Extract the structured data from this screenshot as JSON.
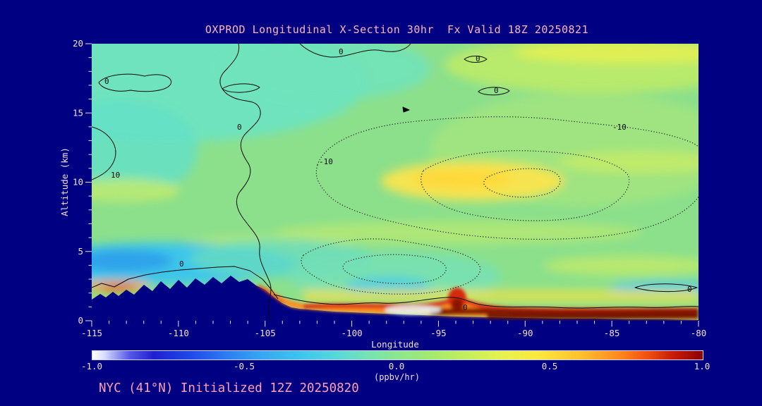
{
  "title": "OXPROD Longitudinal X-Section 30hr  Fx Valid 18Z 20250821",
  "footer": "NYC (41°N) Initialized 12Z 20250820",
  "axes": {
    "y_label": "Altitude (km)",
    "y_ticks": [
      "20",
      "15",
      "10",
      "5",
      "0"
    ],
    "x_label": "Longitude",
    "x_ticks": [
      "-115",
      "-110",
      "-105",
      "-100",
      "-95",
      "-90",
      "-85",
      "-80"
    ]
  },
  "colorbar": {
    "tick_labels": [
      "-1.0",
      "-0.5",
      "0.0",
      "0.5",
      "1.0"
    ],
    "units_label": "(ppbv/hr)",
    "min": -1.0,
    "max": 1.0,
    "gradient_stops": [
      [
        0,
        "#FFFFFF"
      ],
      [
        2,
        "#D8DCFF"
      ],
      [
        6,
        "#5858E8"
      ],
      [
        10,
        "#2020D0"
      ],
      [
        16,
        "#2048E8"
      ],
      [
        22,
        "#2E7CF2"
      ],
      [
        28,
        "#38A8F0"
      ],
      [
        34,
        "#3CC4EE"
      ],
      [
        40,
        "#58D8D8"
      ],
      [
        45,
        "#76E2B4"
      ],
      [
        50,
        "#8CE68C"
      ],
      [
        55,
        "#A2E972"
      ],
      [
        61,
        "#C2EE5E"
      ],
      [
        67,
        "#E6F24E"
      ],
      [
        73,
        "#FFE83E"
      ],
      [
        80,
        "#FFC02E"
      ],
      [
        86,
        "#FF8C1E"
      ],
      [
        91,
        "#F05010"
      ],
      [
        95,
        "#C81E04"
      ],
      [
        100,
        "#8B0000"
      ]
    ]
  },
  "contours": {
    "labels": [
      "0",
      "0",
      "10",
      "0",
      "0",
      "0",
      "-10",
      "-10",
      "0",
      "0",
      "0"
    ],
    "levels_labeled": [
      -10,
      0,
      10
    ],
    "line_style": "solid for levels >= 0, dotted for negative levels"
  },
  "colors": {
    "background": "#000082",
    "terrain": "#000082",
    "title_text": "#FFB4C0",
    "axis_text": "#F2DEDE",
    "footer_text": "#FF9FB3",
    "field_base_green": "#8CE08C"
  },
  "chart_data": {
    "type": "heatmap",
    "title": "OXPROD Longitudinal X-Section 30hr  Fx Valid 18Z 20250821",
    "xlabel": "Longitude",
    "ylabel": "Altitude (km)",
    "units": "ppbv/hr",
    "x_range": [
      -115,
      -80
    ],
    "y_range": [
      0,
      20
    ],
    "colorbar_range": [
      -1.0,
      1.0
    ],
    "x": [
      -115,
      -110,
      -105,
      -100,
      -95,
      -90,
      -85,
      -80
    ],
    "y": [
      0,
      2.5,
      5,
      7.5,
      10,
      12.5,
      15,
      17.5,
      20
    ],
    "values_rows_by_altitude": [
      {
        "altitude_km": 20,
        "values": [
          -0.05,
          -0.05,
          0,
          0.05,
          0.05,
          0.1,
          0.15,
          0.1
        ]
      },
      {
        "altitude_km": 17.5,
        "values": [
          -0.1,
          -0.1,
          -0.05,
          0.05,
          0.05,
          0.1,
          0.15,
          0.1
        ]
      },
      {
        "altitude_km": 15,
        "values": [
          0,
          -0.05,
          0,
          0.05,
          0.1,
          0.1,
          0.15,
          0.1
        ]
      },
      {
        "altitude_km": 12.5,
        "values": [
          0.05,
          0.05,
          0.05,
          0.1,
          0.15,
          0.1,
          0.1,
          0.1
        ]
      },
      {
        "altitude_km": 10,
        "values": [
          0.1,
          0.05,
          0.1,
          0.15,
          0.35,
          0.2,
          0.1,
          0.15
        ]
      },
      {
        "altitude_km": 7.5,
        "values": [
          0.05,
          0.1,
          0.1,
          0.15,
          0.25,
          0.2,
          0.15,
          0.2
        ]
      },
      {
        "altitude_km": 5,
        "values": [
          -0.35,
          -0.3,
          -0.1,
          0.05,
          0.15,
          0.15,
          0.1,
          0.15
        ]
      },
      {
        "altitude_km": 2.5,
        "values": [
          -0.2,
          null,
          0.2,
          0.3,
          0.35,
          0.3,
          0.35,
          0.3
        ]
      },
      {
        "altitude_km": 0,
        "values": [
          null,
          null,
          0.3,
          0.6,
          0.9,
          1.0,
          1.0,
          1.0
        ]
      }
    ],
    "terrain_profile_km": [
      {
        "lon": -115,
        "alt": 1.5
      },
      {
        "lon": -112,
        "alt": 2.6
      },
      {
        "lon": -109,
        "alt": 3.0
      },
      {
        "lon": -107,
        "alt": 3.3
      },
      {
        "lon": -105,
        "alt": 2.3
      },
      {
        "lon": -103,
        "alt": 0.9
      },
      {
        "lon": -100,
        "alt": 0.6
      },
      {
        "lon": -95,
        "alt": 0.35
      },
      {
        "lon": -90,
        "alt": 0.2
      },
      {
        "lon": -85,
        "alt": 0.1
      },
      {
        "lon": -80,
        "alt": 0.05
      }
    ],
    "contour_overlay_levels": [
      -10,
      0,
      10
    ]
  }
}
